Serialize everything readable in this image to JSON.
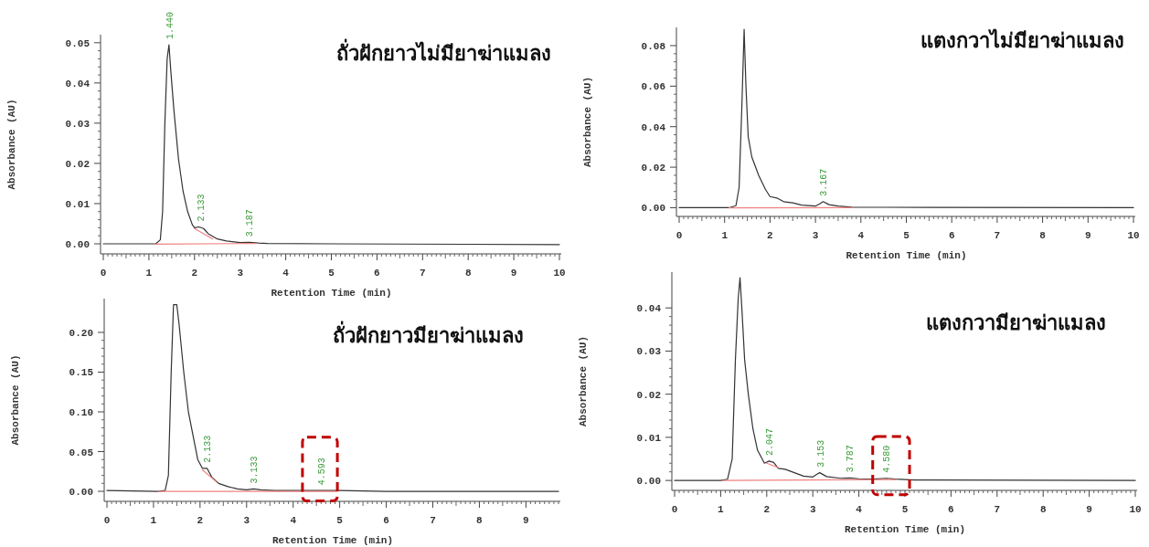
{
  "chart_data": [
    {
      "type": "line",
      "title": "ถั่วฝักยาวไม่มียาฆ่าแมลง",
      "xlabel": "Retention Time (min)",
      "ylabel": "Absorbance (AU)",
      "xlim": [
        0,
        10
      ],
      "xticks": [
        0,
        1,
        2,
        3,
        4,
        5,
        6,
        7,
        8,
        9,
        10
      ],
      "ylim": [
        -0.0025,
        0.052
      ],
      "yticks": [
        {
          "value": 0,
          "label": "0.00"
        },
        {
          "value": 0.01,
          "label": "0.01"
        },
        {
          "value": 0.02,
          "label": "0.02"
        },
        {
          "value": 0.03,
          "label": "0.03"
        },
        {
          "value": 0.04,
          "label": "0.04"
        },
        {
          "value": 0.05,
          "label": "0.05"
        }
      ],
      "series": [
        {
          "color": "#333333",
          "x": [
            0,
            1.0,
            1.15,
            1.25,
            1.3,
            1.35,
            1.4,
            1.44,
            1.48,
            1.55,
            1.65,
            1.75,
            1.85,
            1.95,
            2.0,
            2.1,
            2.2,
            2.3,
            2.5,
            2.7,
            3.0,
            3.2,
            3.4,
            3.6,
            5,
            10
          ],
          "values": [
            0,
            0,
            0,
            0.001,
            0.008,
            0.03,
            0.046,
            0.0495,
            0.043,
            0.033,
            0.021,
            0.013,
            0.008,
            0.0048,
            0.004,
            0.0042,
            0.0038,
            0.0025,
            0.0012,
            0.0007,
            0.0003,
            0.0004,
            0.0002,
            0.0001,
            0,
            -0.0002
          ]
        },
        {
          "color": "#f08080",
          "x": [
            1.12,
            3.35
          ],
          "values": [
            -0.0001,
            0.0001
          ]
        },
        {
          "color": "#f08080",
          "x": [
            2.0,
            2.4
          ],
          "values": [
            0.0038,
            0.0012
          ]
        }
      ],
      "annotations": [
        {
          "text": "1.440",
          "x": 1.44,
          "y": 0.0495
        },
        {
          "text": "2.133",
          "x": 2.133,
          "y": 0.0042
        },
        {
          "text": "3.187",
          "x": 3.187,
          "y": 0.0004
        }
      ]
    },
    {
      "type": "line",
      "title": "แตงกวาไม่มียาฆ่าแมลง",
      "xlabel": "Retention Time (min)",
      "ylabel": "Absorbance (AU)",
      "xlim": [
        0,
        10
      ],
      "xticks": [
        0,
        1,
        2,
        3,
        4,
        5,
        6,
        7,
        8,
        9,
        10
      ],
      "ylim": [
        -0.0043,
        0.089
      ],
      "yticks": [
        {
          "value": 0,
          "label": "0.00"
        },
        {
          "value": 0.02,
          "label": "0.02"
        },
        {
          "value": 0.04,
          "label": "0.04"
        },
        {
          "value": 0.06,
          "label": "0.06"
        },
        {
          "value": 0.08,
          "label": "0.08"
        }
      ],
      "series": [
        {
          "color": "#333333",
          "x": [
            0,
            1.1,
            1.25,
            1.32,
            1.38,
            1.43,
            1.47,
            1.52,
            1.6,
            1.75,
            1.9,
            2.0,
            2.15,
            2.3,
            2.5,
            2.7,
            3.0,
            3.1,
            3.17,
            3.3,
            3.5,
            3.8,
            4.5,
            10
          ],
          "values": [
            0,
            0,
            0.001,
            0.01,
            0.05,
            0.088,
            0.06,
            0.035,
            0.025,
            0.016,
            0.009,
            0.0055,
            0.0048,
            0.003,
            0.0024,
            0.0013,
            0.0008,
            0.002,
            0.003,
            0.0015,
            0.0008,
            0.0003,
            0.0002,
            0
          ]
        },
        {
          "color": "#f08080",
          "x": [
            1.1,
            3.8
          ],
          "values": [
            -0.0001,
            0
          ]
        }
      ],
      "annotations": [
        {
          "text": "3.167",
          "x": 3.167,
          "y": 0.003
        }
      ]
    },
    {
      "type": "line",
      "title": "ถั่วฝักยาวมียาฆ่าแมลง",
      "xlabel": "Retention Time (min)",
      "ylabel": "Absorbance (AU)",
      "xlim": [
        0,
        9.7
      ],
      "xticks": [
        0,
        1,
        2,
        3,
        4,
        5,
        6,
        7,
        8,
        9
      ],
      "ylim": [
        -0.0126,
        0.2425
      ],
      "yticks": [
        {
          "value": 0,
          "label": "0.00"
        },
        {
          "value": 0.05,
          "label": "0.05"
        },
        {
          "value": 0.1,
          "label": "0.10"
        },
        {
          "value": 0.15,
          "label": "0.15"
        },
        {
          "value": 0.2,
          "label": "0.20"
        }
      ],
      "series": [
        {
          "color": "#333333",
          "x": [
            0,
            1.1,
            1.25,
            1.32,
            1.38,
            1.43,
            1.5,
            1.55,
            1.65,
            1.75,
            1.85,
            1.95,
            2.05,
            2.15,
            2.25,
            2.4,
            2.6,
            2.8,
            3.0,
            3.15,
            3.3,
            3.6,
            4.6,
            5,
            6,
            9.7
          ],
          "values": [
            0.001,
            0,
            0.001,
            0.02,
            0.15,
            0.235,
            0.235,
            0.21,
            0.15,
            0.1,
            0.07,
            0.04,
            0.029,
            0.029,
            0.018,
            0.01,
            0.006,
            0.003,
            0.002,
            0.003,
            0.002,
            0.001,
            0.001,
            0.001,
            0,
            0
          ]
        },
        {
          "color": "#f08080",
          "x": [
            1.1,
            4.95
          ],
          "values": [
            0,
            0
          ]
        },
        {
          "color": "#f08080",
          "x": [
            2.05,
            2.35
          ],
          "values": [
            0.027,
            0.012
          ]
        }
      ],
      "annotations": [
        {
          "text": "2.133",
          "x": 2.133,
          "y": 0.029
        },
        {
          "text": "3.133",
          "x": 3.133,
          "y": 0.003
        },
        {
          "text": "4.593",
          "x": 4.593,
          "y": 0.001
        }
      ]
    },
    {
      "type": "line",
      "title": "แตงกวามียาฆ่าแมลง",
      "xlabel": "Retention Time (min)",
      "ylabel": "Absorbance (AU)",
      "xlim": [
        0,
        10
      ],
      "xticks": [
        0,
        1,
        2,
        3,
        4,
        5,
        6,
        7,
        8,
        9,
        10
      ],
      "ylim": [
        -0.0023,
        0.0483
      ],
      "yticks": [
        {
          "value": 0,
          "label": "0.00"
        },
        {
          "value": 0.01,
          "label": "0.01"
        },
        {
          "value": 0.02,
          "label": "0.02"
        },
        {
          "value": 0.03,
          "label": "0.03"
        },
        {
          "value": 0.04,
          "label": "0.04"
        }
      ],
      "series": [
        {
          "color": "#333333",
          "x": [
            0,
            1.0,
            1.15,
            1.25,
            1.32,
            1.38,
            1.42,
            1.46,
            1.52,
            1.6,
            1.7,
            1.8,
            1.95,
            2.05,
            2.15,
            2.25,
            2.4,
            2.6,
            2.8,
            3.0,
            3.1,
            3.15,
            3.3,
            3.6,
            3.8,
            4.0,
            4.3,
            4.6,
            4.8,
            5.2,
            10
          ],
          "values": [
            0,
            0,
            0.0003,
            0.005,
            0.028,
            0.042,
            0.047,
            0.04,
            0.028,
            0.02,
            0.012,
            0.007,
            0.004,
            0.0045,
            0.0042,
            0.0028,
            0.0026,
            0.0018,
            0.001,
            0.0008,
            0.0015,
            0.0018,
            0.0009,
            0.0005,
            0.0006,
            0.0004,
            0.0003,
            0.0005,
            0.0003,
            0.0001,
            0
          ]
        },
        {
          "color": "#f08080",
          "x": [
            1.05,
            4.8
          ],
          "values": [
            0,
            0.0002
          ]
        },
        {
          "color": "#f08080",
          "x": [
            2.0,
            2.25
          ],
          "values": [
            0.004,
            0.003
          ]
        }
      ],
      "annotations": [
        {
          "text": "2.047",
          "x": 2.047,
          "y": 0.0045
        },
        {
          "text": "3.153",
          "x": 3.153,
          "y": 0.0018
        },
        {
          "text": "3.787",
          "x": 3.787,
          "y": 0.0006
        },
        {
          "text": "4.580",
          "x": 4.58,
          "y": 0.0005
        }
      ]
    }
  ]
}
